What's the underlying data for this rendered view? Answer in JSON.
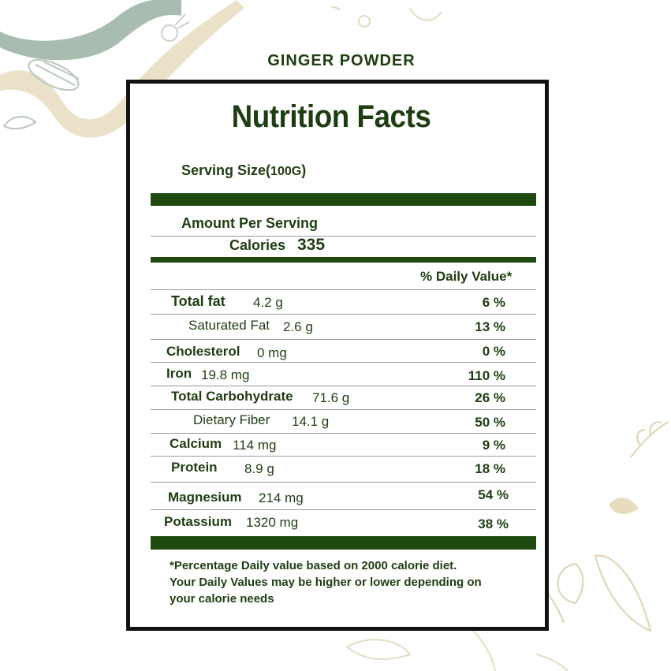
{
  "product_name": "GINGER POWDER",
  "title": "Nutrition Facts",
  "serving_size": {
    "label": "Serving Size(",
    "value": "100G",
    "close": ")"
  },
  "amount_per_serving": "Amount Per Serving",
  "calories": {
    "label": "Calories",
    "value": "335"
  },
  "daily_value_header": "% Daily Value*",
  "nutrients": [
    {
      "name": "Total fat",
      "amount": "4.2 g",
      "dv": "6 %"
    },
    {
      "name": "Saturated Fat",
      "amount": "2.6 g",
      "dv": "13 %"
    },
    {
      "name": "Cholesterol",
      "amount": "0 mg",
      "dv": "0 %"
    },
    {
      "name": "Iron",
      "amount": "19.8 mg",
      "dv": "110 %"
    },
    {
      "name": "Total Carbohydrate",
      "amount": "71.6 g",
      "dv": "26 %"
    },
    {
      "name": "Dietary Fiber",
      "amount": "14.1 g",
      "dv": "50 %"
    },
    {
      "name": "Calcium",
      "amount": "114 mg",
      "dv": "9 %"
    },
    {
      "name": "Protein",
      "amount": "8.9 g",
      "dv": "18 %"
    },
    {
      "name": "Magnesium",
      "amount": "214 mg",
      "dv": "54 %"
    },
    {
      "name": "Potassium",
      "amount": "1320 mg",
      "dv": "38 %"
    }
  ],
  "footnote": [
    "*Percentage Daily value based on 2000 calorie diet.",
    "Your Daily Values may be higher or lower depending on",
    "your calorie needs"
  ],
  "colors": {
    "dark_green": "#1e3d12",
    "bar_green": "#1e4a10",
    "decor_sage": "#a8bdb0",
    "decor_beige": "#e8dcc0"
  }
}
